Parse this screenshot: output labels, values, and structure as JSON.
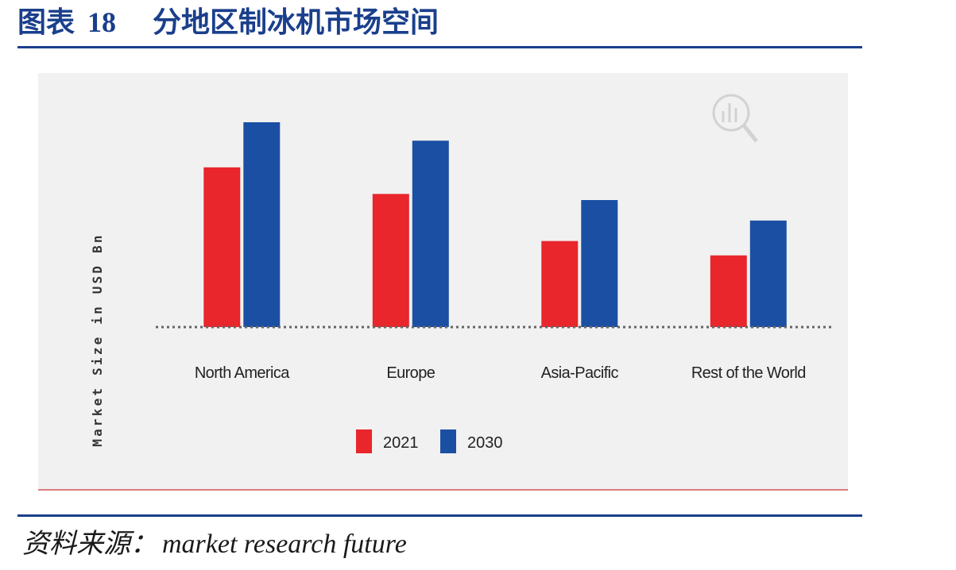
{
  "header": {
    "prefix": "图表",
    "number": "18",
    "title": "分地区制冰机市场空间"
  },
  "source": {
    "label": "资料来源：",
    "text": "market research future"
  },
  "colors": {
    "accent": "#1a3f8c",
    "series_2021": "#e8262c",
    "series_2030": "#1b4fa3",
    "chart_background": "#f1f1f1"
  },
  "chart_data": {
    "type": "bar",
    "categories": [
      "North America",
      "Europe",
      "Asia-Pacific",
      "Rest of the World"
    ],
    "series": [
      {
        "name": "2021",
        "values": [
          78,
          65,
          42,
          35
        ]
      },
      {
        "name": "2030",
        "values": [
          100,
          91,
          62,
          52
        ]
      }
    ],
    "title": "",
    "xlabel": "",
    "ylabel": "Market Size in USD Bn",
    "ylim": [
      0,
      100
    ],
    "grid": false,
    "legend_position": "bottom-center",
    "baseline_style": "dotted"
  }
}
